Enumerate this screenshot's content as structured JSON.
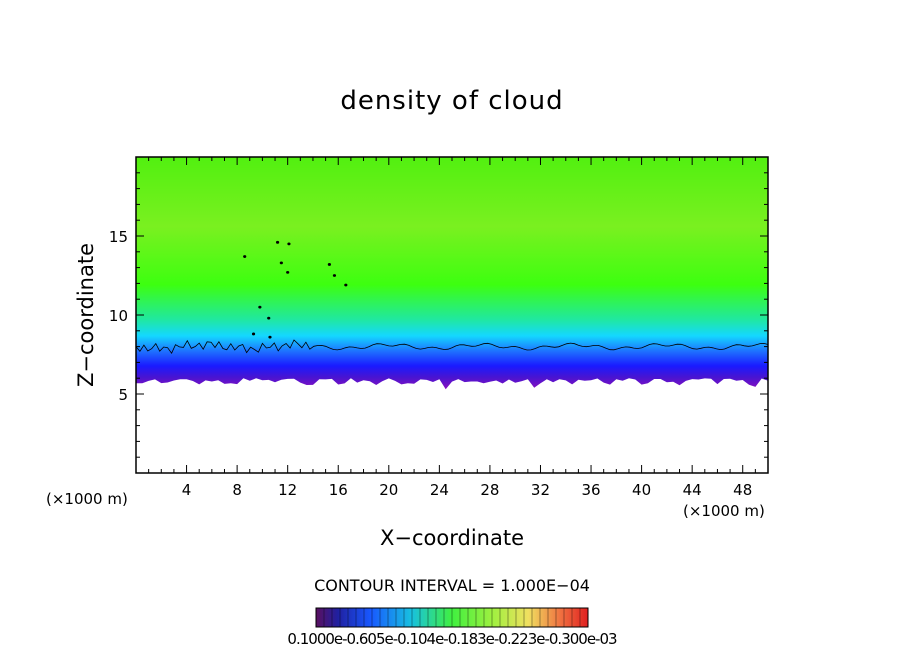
{
  "title": "density of cloud",
  "chart_data": {
    "type": "heatmap",
    "title": "density of cloud",
    "xlabel": "X−coordinate",
    "ylabel": "Z−coordinate",
    "x_unit_label": "(×1000 m)",
    "y_unit_label": "(×1000 m)",
    "xlim": [
      0,
      50
    ],
    "ylim": [
      0,
      20
    ],
    "x_ticks": [
      4,
      8,
      12,
      16,
      20,
      24,
      28,
      32,
      36,
      40,
      44,
      48
    ],
    "y_ticks": [
      5,
      10,
      15
    ],
    "cloud_base_km": 6.0,
    "cloud_top_km": 20.0,
    "contour_line_z_km": 8.0,
    "contour_interval_text": "CONTOUR INTERVAL = 1.000E−04",
    "colorbar_labels_text": "0.1000e-0.605e-0.104e-0.183e-0.223e-0.300e-03",
    "colors": {
      "green": "#3dff10",
      "cyan": "#14d8ff",
      "blue": "#1a1aff",
      "purple": "#8a10c0",
      "background": "#ffffff"
    }
  }
}
